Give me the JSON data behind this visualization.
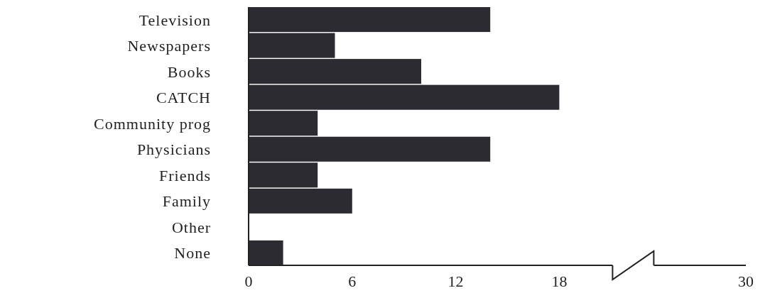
{
  "chart_data": {
    "type": "bar",
    "orientation": "horizontal",
    "categories": [
      "Television",
      "Newspapers",
      "Books",
      "CATCH",
      "Community prog",
      "Physicians",
      "Friends",
      "Family",
      "Other",
      "None"
    ],
    "values": [
      14,
      5,
      10,
      18,
      4,
      14,
      4,
      6,
      0,
      2
    ],
    "color": "#2b2b31",
    "xlim": [
      0,
      30
    ],
    "xticks": [
      0,
      6,
      12,
      18,
      30
    ],
    "grid": false
  }
}
